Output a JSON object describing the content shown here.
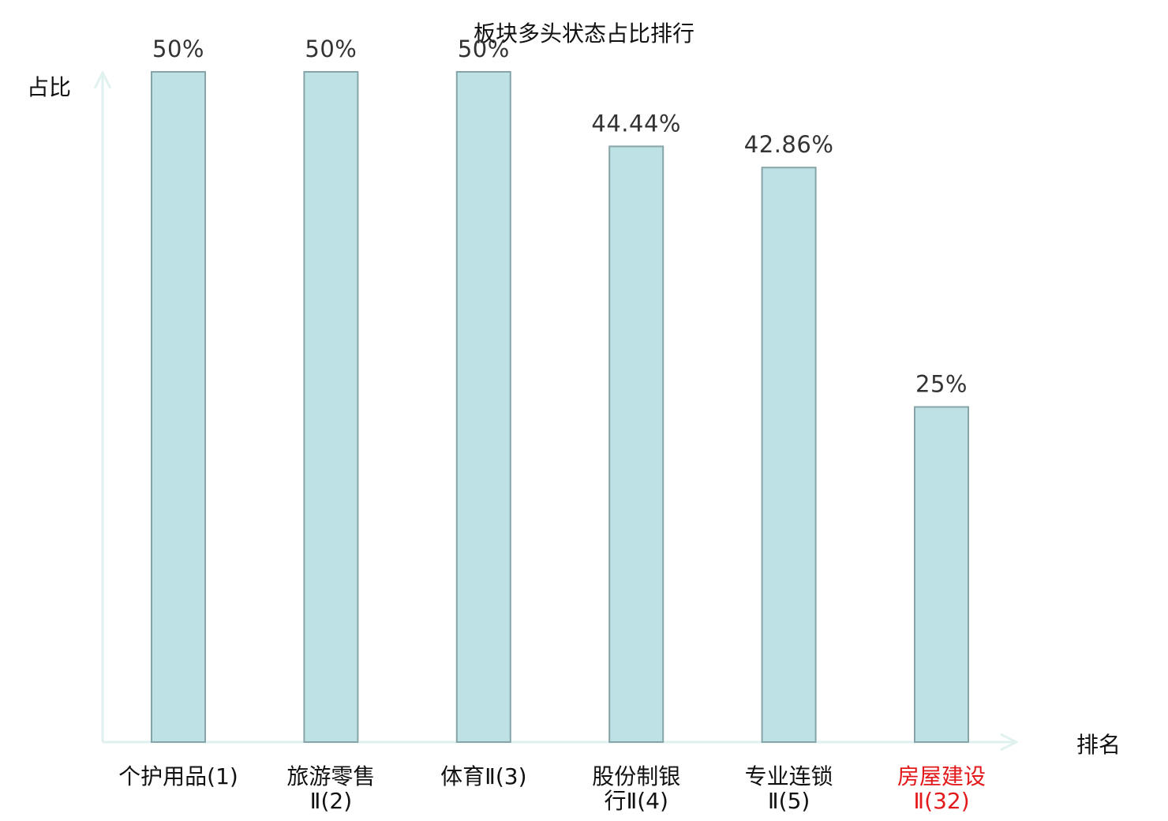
{
  "chart_data": {
    "type": "bar",
    "title": "板块多头状态占比排行",
    "xlabel": "排名",
    "ylabel": "占比",
    "ylim": [
      0,
      50
    ],
    "grid": false,
    "legend": "none",
    "categories": [
      [
        "个护用品(1)"
      ],
      [
        "旅游零售",
        "Ⅱ(2)"
      ],
      [
        "体育Ⅱ(3)"
      ],
      [
        "股份制银",
        "行Ⅱ(4)"
      ],
      [
        "专业连锁",
        "Ⅱ(5)"
      ],
      [
        "房屋建设",
        "Ⅱ(32)"
      ]
    ],
    "values": [
      50,
      50,
      50,
      44.44,
      42.86,
      25
    ],
    "value_labels": [
      "50%",
      "50%",
      "50%",
      "44.44%",
      "42.86%",
      "25%"
    ],
    "highlight_index": 5,
    "colors": {
      "bar_fill": "#bde1e4",
      "bar_stroke": "#87a5a8",
      "axis": "#dff2ef",
      "highlight_label": "#e31a1c",
      "label": "#111111"
    }
  }
}
